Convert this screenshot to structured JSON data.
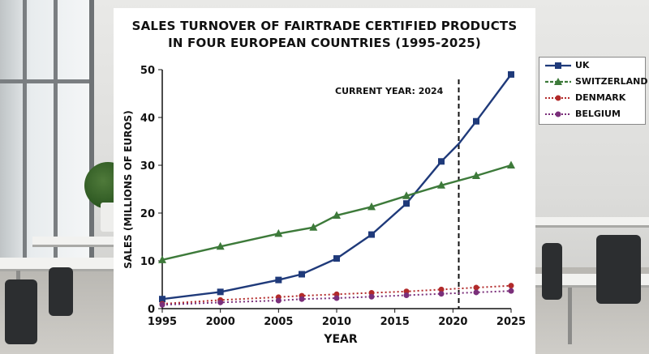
{
  "chart_data": {
    "type": "line",
    "title_line1": "SALES TURNOVER OF FAIRTRADE CERTIFIED PRODUCTS",
    "title_line2": "IN FOUR EUROPEAN COUNTRIES (1995-2025)",
    "xlabel": "YEAR",
    "ylabel": "SALES (MILLIONS OF EUROS)",
    "xlim": [
      1995,
      2025
    ],
    "ylim": [
      0,
      50
    ],
    "x_ticks": [
      1995,
      2000,
      2005,
      2010,
      2015,
      2020,
      2025
    ],
    "y_ticks": [
      0,
      10,
      20,
      30,
      40,
      50
    ],
    "annotation": {
      "label": "CURRENT YEAR: 2024",
      "x": 2020.5
    },
    "series": [
      {
        "name": "UK",
        "color": "#1f3a7a",
        "marker": "square",
        "dash": "solid",
        "points": [
          [
            1995,
            2
          ],
          [
            2000,
            3.5
          ],
          [
            2005,
            6
          ],
          [
            2007,
            7.2
          ],
          [
            2010,
            10.5
          ],
          [
            2013,
            15.5
          ],
          [
            2016,
            22
          ],
          [
            2019,
            30.8
          ],
          [
            2022,
            39.2
          ],
          [
            2025,
            49
          ]
        ],
        "curve": [
          [
            1995,
            2
          ],
          [
            2000,
            3.5
          ],
          [
            2005,
            6
          ],
          [
            2007,
            7.2
          ],
          [
            2010,
            10.5
          ],
          [
            2013,
            15.5
          ],
          [
            2016,
            22
          ],
          [
            2019,
            30.8
          ],
          [
            2020.5,
            34.5
          ],
          [
            2022,
            39.2
          ],
          [
            2025,
            49
          ]
        ]
      },
      {
        "name": "SWITZERLAND",
        "color": "#3d7a3a",
        "marker": "triangle",
        "dash": "solid",
        "points": [
          [
            1995,
            10.2
          ],
          [
            2000,
            13
          ],
          [
            2005,
            15.7
          ],
          [
            2008,
            17
          ],
          [
            2010,
            19.5
          ],
          [
            2013,
            21.3
          ],
          [
            2016,
            23.6
          ],
          [
            2019,
            25.8
          ],
          [
            2022,
            27.8
          ],
          [
            2025,
            30
          ]
        ],
        "curve": [
          [
            1995,
            10.2
          ],
          [
            2000,
            13
          ],
          [
            2005,
            15.7
          ],
          [
            2008,
            17
          ],
          [
            2010,
            19.5
          ],
          [
            2013,
            21.3
          ],
          [
            2016,
            23.6
          ],
          [
            2019,
            25.8
          ],
          [
            2022,
            27.8
          ],
          [
            2025,
            30
          ]
        ]
      },
      {
        "name": "DENMARK",
        "color": "#b22a2a",
        "marker": "circle",
        "dash": "dotted",
        "points": [
          [
            1995,
            1
          ],
          [
            2000,
            1.8
          ],
          [
            2005,
            2.4
          ],
          [
            2007,
            2.7
          ],
          [
            2010,
            3
          ],
          [
            2013,
            3.3
          ],
          [
            2016,
            3.6
          ],
          [
            2019,
            4
          ],
          [
            2022,
            4.4
          ],
          [
            2025,
            4.8
          ]
        ],
        "curve": [
          [
            1995,
            1
          ],
          [
            2000,
            1.8
          ],
          [
            2005,
            2.4
          ],
          [
            2007,
            2.7
          ],
          [
            2010,
            3
          ],
          [
            2013,
            3.3
          ],
          [
            2016,
            3.6
          ],
          [
            2019,
            4
          ],
          [
            2022,
            4.4
          ],
          [
            2025,
            4.8
          ]
        ]
      },
      {
        "name": "BELGIUM",
        "color": "#7a2f7a",
        "marker": "circle",
        "dash": "dotted",
        "points": [
          [
            1995,
            0.8
          ],
          [
            2000,
            1.3
          ],
          [
            2005,
            1.7
          ],
          [
            2007,
            2
          ],
          [
            2010,
            2.2
          ],
          [
            2013,
            2.5
          ],
          [
            2016,
            2.8
          ],
          [
            2019,
            3.1
          ],
          [
            2022,
            3.4
          ],
          [
            2025,
            3.7
          ]
        ],
        "curve": [
          [
            1995,
            0.8
          ],
          [
            2000,
            1.3
          ],
          [
            2005,
            1.7
          ],
          [
            2007,
            2
          ],
          [
            2010,
            2.2
          ],
          [
            2013,
            2.5
          ],
          [
            2016,
            2.8
          ],
          [
            2019,
            3.1
          ],
          [
            2022,
            3.4
          ],
          [
            2025,
            3.7
          ]
        ]
      }
    ]
  }
}
